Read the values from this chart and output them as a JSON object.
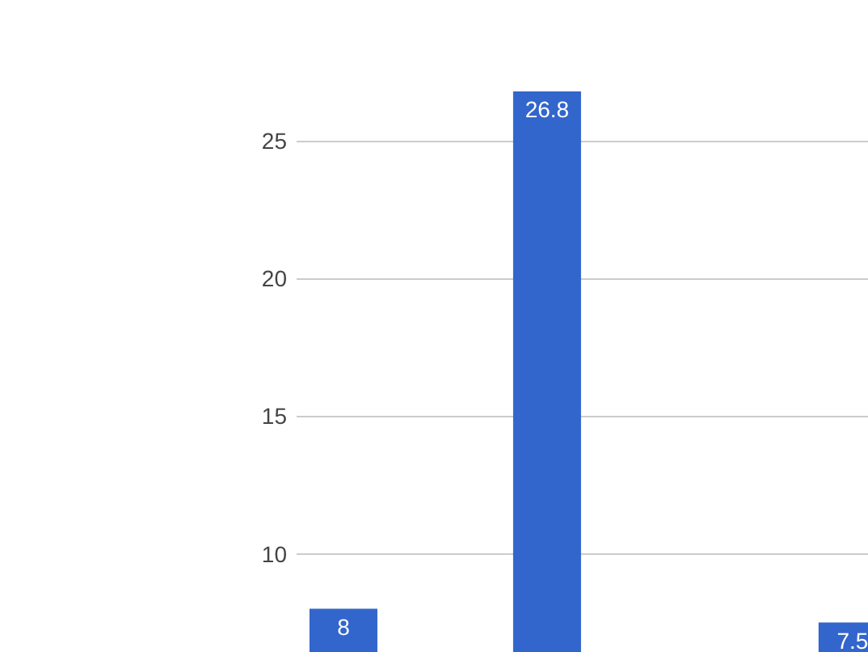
{
  "chart_data": {
    "type": "bar",
    "categories": [
      null,
      null,
      null,
      null,
      null,
      null
    ],
    "values": [
      8,
      null,
      26.8,
      null,
      null,
      7.5
    ],
    "color": "#3366cc",
    "ylim": [
      6.4,
      26.8
    ],
    "yticks": [
      10,
      15,
      20,
      25
    ],
    "grid": "y",
    "data_labels": true,
    "tick_labels": "y"
  }
}
